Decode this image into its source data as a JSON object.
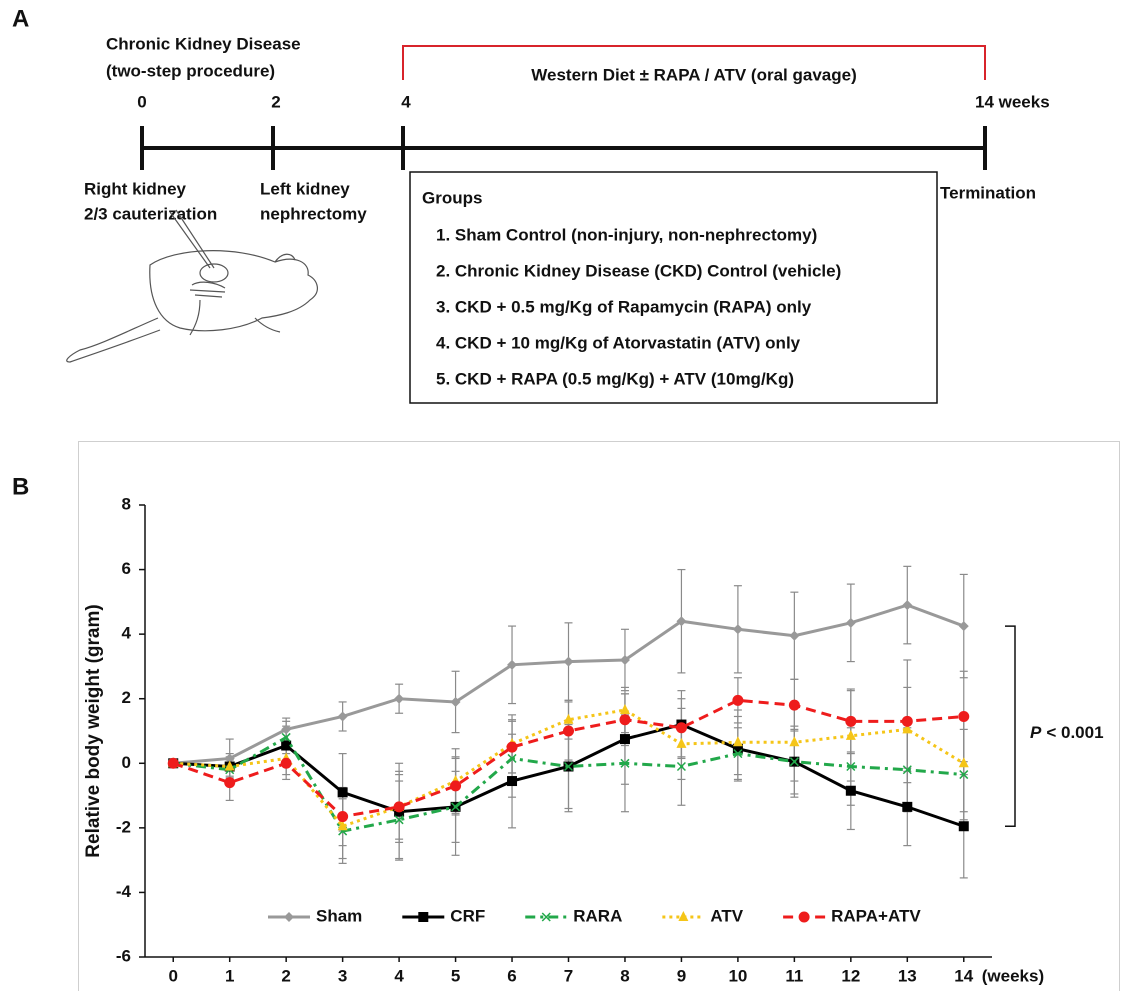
{
  "panel_a": {
    "label": "A",
    "title": [
      "Chronic Kidney Disease",
      "(two-step procedure)"
    ],
    "timeline_ticks": [
      "0",
      "2",
      "4",
      "14 weeks"
    ],
    "treatment": "Western Diet ± RAPA / ATV (oral gavage)",
    "steps": [
      [
        "Right kidney",
        "2/3 cauterization"
      ],
      [
        "Left kidney",
        "nephrectomy"
      ]
    ],
    "end": "Termination",
    "groups": {
      "title": "Groups",
      "items": [
        "1. Sham Control (non-injury, non-nephrectomy)",
        "2. Chronic Kidney Disease (CKD) Control (vehicle)",
        "3. CKD + 0.5 mg/Kg of Rapamycin (RAPA) only",
        "4. CKD + 10 mg/Kg of Atorvastatin (ATV) only",
        "5. CKD + RAPA (0.5 mg/Kg) + ATV (10mg/Kg)"
      ]
    }
  },
  "panel_b_label": "B",
  "chart_data": {
    "type": "line",
    "y_label": "Relative body weight (gram)",
    "x_label": "(weeks)",
    "annotation": {
      "variable": "P",
      "text": "< 0.001"
    },
    "x": [
      0,
      1,
      2,
      3,
      4,
      5,
      6,
      7,
      8,
      9,
      10,
      11,
      12,
      13,
      14
    ],
    "xlim": [
      -0.5,
      14.5
    ],
    "xticks": [
      0,
      1,
      2,
      3,
      4,
      5,
      6,
      7,
      8,
      9,
      10,
      11,
      12,
      13,
      14
    ],
    "ylim": [
      -6,
      8
    ],
    "yticks": [
      -6,
      -4,
      -2,
      0,
      2,
      4,
      6,
      8
    ],
    "series": [
      {
        "name": "Sham",
        "color": "#999999",
        "marker": "diamond",
        "dash": "solid",
        "values": [
          0,
          0.15,
          1.05,
          1.45,
          2.0,
          1.9,
          3.05,
          3.15,
          3.2,
          4.4,
          4.15,
          3.95,
          4.35,
          4.9,
          4.25
        ],
        "errors": [
          0,
          0.6,
          0.35,
          0.45,
          0.45,
          0.95,
          1.2,
          1.2,
          0.95,
          1.6,
          1.35,
          1.35,
          1.2,
          1.2,
          1.6
        ]
      },
      {
        "name": "CRF",
        "color": "#000000",
        "marker": "square",
        "dash": "solid",
        "values": [
          0,
          -0.1,
          0.55,
          -0.9,
          -1.5,
          -1.35,
          -0.55,
          -0.1,
          0.75,
          1.2,
          0.45,
          0.05,
          -0.85,
          -1.35,
          -1.95
        ],
        "errors": [
          0,
          0.4,
          0.6,
          1.2,
          1.5,
          1.5,
          1.45,
          1.4,
          1.4,
          1.05,
          1.0,
          1.1,
          1.2,
          1.2,
          1.6
        ]
      },
      {
        "name": "RARA",
        "color": "#22a84a",
        "marker": "x",
        "dash": "dashdot",
        "values": [
          0,
          -0.2,
          0.8,
          -2.1,
          -1.75,
          -1.35,
          0.15,
          -0.1,
          0,
          -0.1,
          0.3,
          0.05,
          -0.1,
          -0.2,
          -0.35
        ],
        "errors": [
          0,
          0.3,
          0.5,
          1.0,
          1.2,
          1.1,
          1.2,
          1.3,
          1.5,
          1.2,
          0.8,
          1.0,
          1.2,
          1.3,
          1.4
        ]
      },
      {
        "name": "ATV",
        "color": "#f5c518",
        "marker": "triangle",
        "dash": "dot",
        "values": [
          0,
          -0.1,
          0.15,
          -1.95,
          -1.35,
          -0.55,
          0.6,
          1.35,
          1.65,
          0.6,
          0.65,
          0.65,
          0.85,
          1.05,
          0
        ],
        "errors": [
          0,
          0.3,
          0.5,
          1.0,
          1.1,
          1.0,
          0.9,
          0.6,
          0.7,
          1.1,
          1.0,
          1.2,
          1.4,
          1.3,
          1.5
        ]
      },
      {
        "name": "RAPA+ATV",
        "color": "#ee1c1c",
        "marker": "circle",
        "dash": "dash",
        "values": [
          0,
          -0.6,
          0,
          -1.65,
          -1.35,
          -0.7,
          0.5,
          1.0,
          1.35,
          1.1,
          1.95,
          1.8,
          1.3,
          1.3,
          1.45
        ],
        "errors": [
          0,
          0.55,
          0.5,
          0.9,
          1.0,
          0.9,
          0.8,
          0.9,
          0.8,
          0.9,
          0.7,
          0.8,
          1.0,
          1.9,
          1.4
        ]
      }
    ]
  }
}
